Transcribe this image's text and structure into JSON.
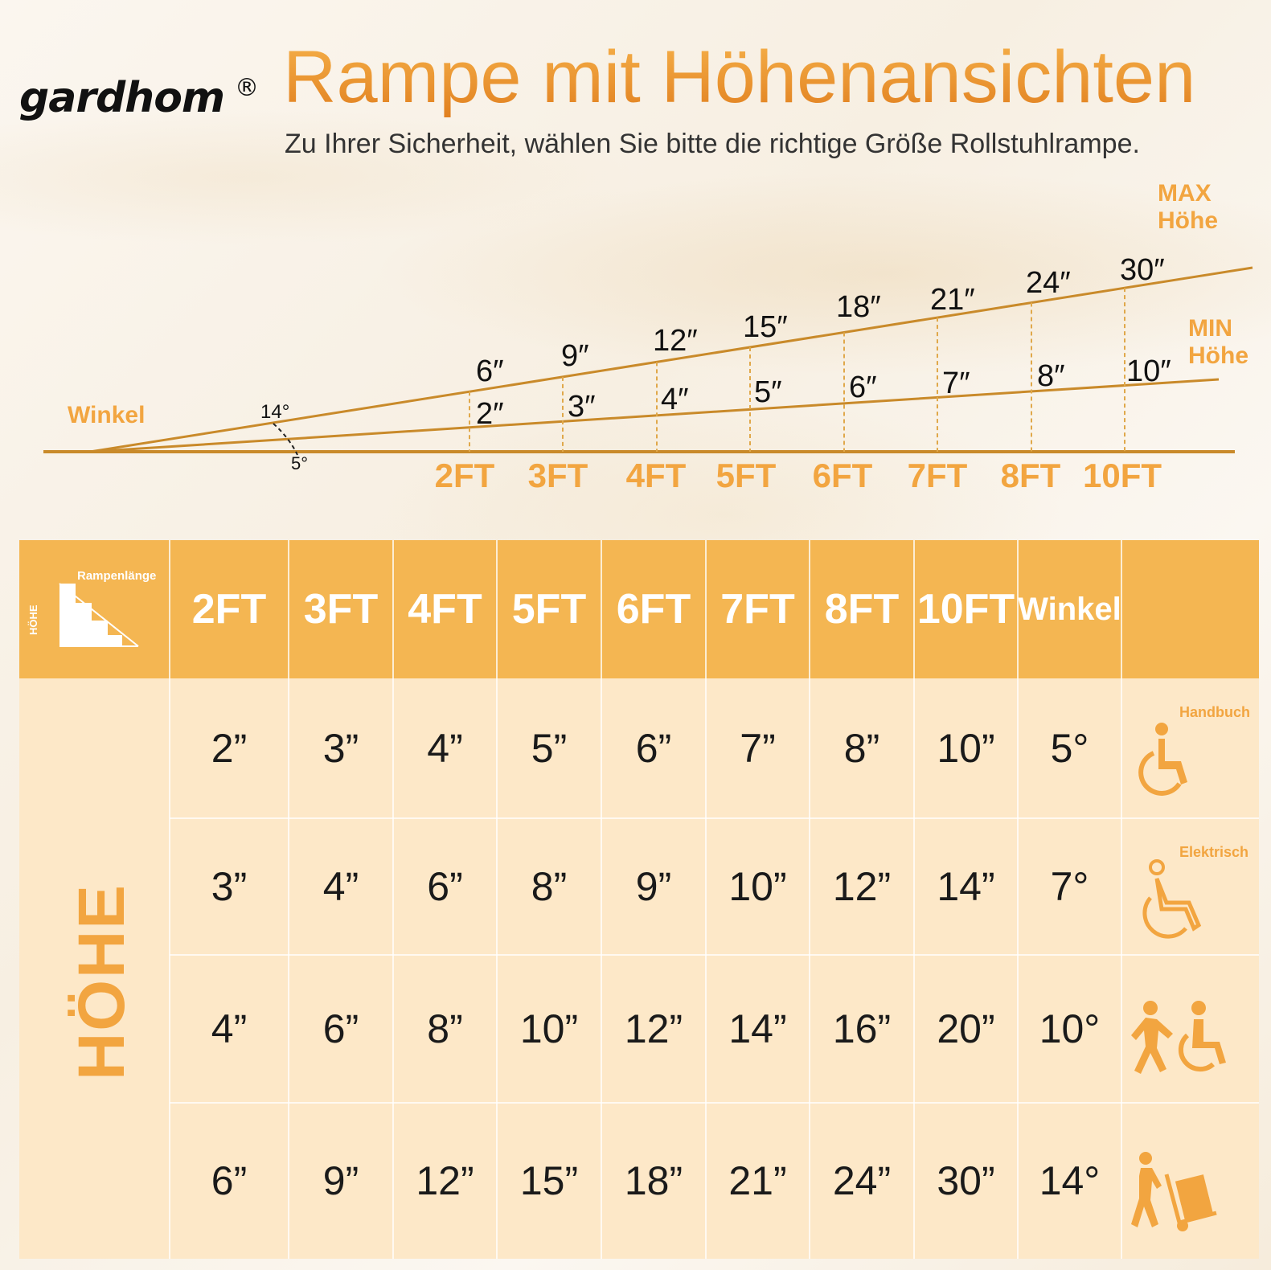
{
  "brand": {
    "logo_text": "gardhom",
    "registered_mark": "®"
  },
  "header": {
    "title": "Rampe mit Höhenansichten",
    "subtitle": "Zu Ihrer Sicherheit, wählen Sie bitte die richtige Größe Rollstuhlrampe."
  },
  "diagram": {
    "angle_label": "Winkel",
    "max_angle": "14°",
    "min_angle": "5°",
    "max_label_line1": "MAX",
    "max_label_line2": "Höhe",
    "min_label_line1": "MIN",
    "min_label_line2": "Höhe",
    "lengths": [
      "2FT",
      "3FT",
      "4FT",
      "5FT",
      "6FT",
      "7FT",
      "8FT",
      "10FT"
    ],
    "max_heights": [
      "6″",
      "9″",
      "12″",
      "15″",
      "18″",
      "21″",
      "24″",
      "30″"
    ],
    "min_heights": [
      "2″",
      "3″",
      "4″",
      "5″",
      "6″",
      "7″",
      "8″",
      "10″"
    ],
    "line_color": "#c98a2a",
    "accent_color": "#f2a540"
  },
  "table": {
    "corner_label": "Rampenlänge",
    "corner_side_label": "HÖHE",
    "row_group_label": "HÖHE",
    "columns": [
      "2FT",
      "3FT",
      "4FT",
      "5FT",
      "6FT",
      "7FT",
      "8FT",
      "10FT",
      "Winkel"
    ],
    "rows": [
      {
        "values": [
          "2”",
          "3”",
          "4”",
          "5”",
          "6”",
          "7”",
          "8”",
          "10”",
          "5°"
        ],
        "icon": "manual-wheelchair-icon",
        "icon_label": "Handbuch"
      },
      {
        "values": [
          "3”",
          "4”",
          "6”",
          "8”",
          "9”",
          "10”",
          "12”",
          "14”",
          "7°"
        ],
        "icon": "electric-wheelchair-icon",
        "icon_label": "Elektrisch"
      },
      {
        "values": [
          "4”",
          "6”",
          "8”",
          "10”",
          "12”",
          "14”",
          "16”",
          "20”",
          "10°"
        ],
        "icon": "assisted-wheelchair-icon",
        "icon_label": ""
      },
      {
        "values": [
          "6”",
          "9”",
          "12”",
          "15”",
          "18”",
          "21”",
          "24”",
          "30”",
          "14°"
        ],
        "icon": "hand-truck-icon",
        "icon_label": ""
      }
    ],
    "header_color": "#f4b652",
    "body_color": "#fde8c8"
  }
}
